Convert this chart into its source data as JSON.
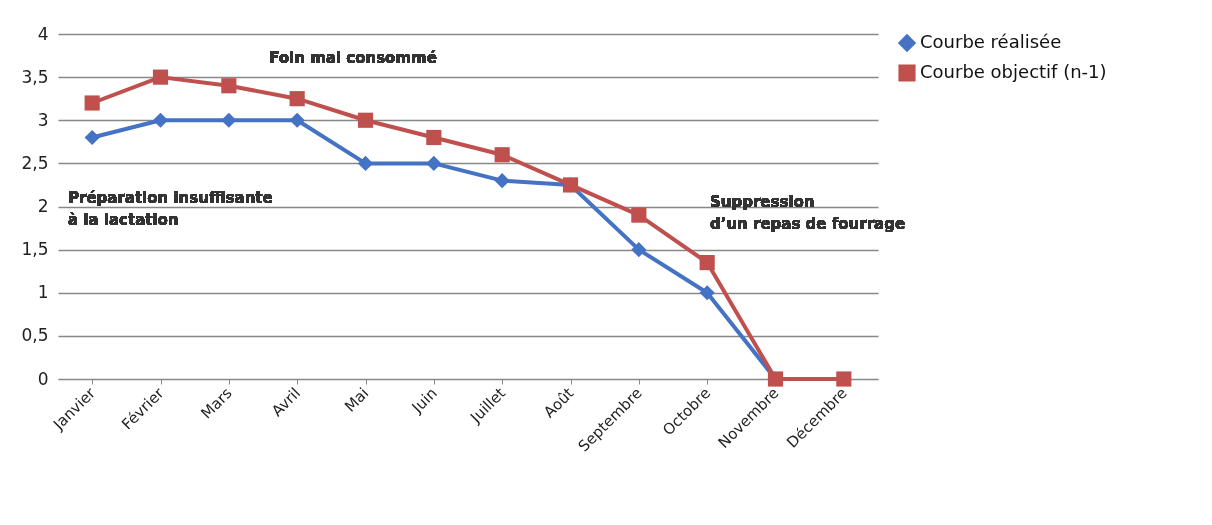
{
  "chart_data": {
    "type": "line",
    "categories": [
      "Janvier",
      "Février",
      "Mars",
      "Avril",
      "Mai",
      "Juin",
      "Juillet",
      "Août",
      "Septembre",
      "Octobre",
      "Novembre",
      "Décembre"
    ],
    "series": [
      {
        "name": "Courbe réalisée",
        "color": "#4472c4",
        "marker": "diamond",
        "values": [
          2.8,
          3,
          3,
          3,
          2.5,
          2.5,
          2.3,
          2.25,
          1.5,
          1,
          0,
          null
        ]
      },
      {
        "name": "Courbe objectif (n-1)",
        "color": "#c0504d",
        "marker": "square",
        "values": [
          3.2,
          3.5,
          3.4,
          3.25,
          3,
          2.8,
          2.6,
          2.25,
          1.9,
          1.35,
          0,
          0
        ]
      }
    ],
    "ylim": [
      0,
      4
    ],
    "yticks": [
      0,
      {
        "value": 0.5,
        "label": "0,5"
      },
      1,
      {
        "value": 1.5,
        "label": "1,5"
      },
      2,
      {
        "value": 2.5,
        "label": "2,5"
      },
      3,
      {
        "value": 3.5,
        "label": "3,5"
      },
      4
    ],
    "grid": "y",
    "legend": "right",
    "line_style": "solid",
    "annotations": [
      "Préparation insuffisante\nà la lactation",
      "Foin mal consommé",
      "Suppression\nd’un repas de fourrage"
    ]
  }
}
